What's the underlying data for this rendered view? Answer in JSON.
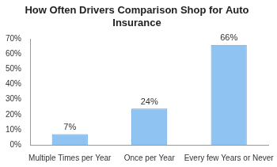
{
  "chart_data": {
    "type": "bar",
    "title": "How Often Drivers Comparison Shop for Auto Insurance",
    "categories": [
      "Multiple Times per Year",
      "Once per Year",
      "Every few Years or Never"
    ],
    "values": [
      7,
      24,
      66
    ],
    "value_labels": [
      "7%",
      "24%",
      "66%"
    ],
    "data_labels": true,
    "color": "#8ec3f2",
    "ylim": [
      0,
      70
    ],
    "yticks": [
      {
        "value": 0,
        "label": "0%"
      },
      {
        "value": 10,
        "label": "10%"
      },
      {
        "value": 20,
        "label": "20%"
      },
      {
        "value": 30,
        "label": "30%"
      },
      {
        "value": 40,
        "label": "40%"
      },
      {
        "value": 50,
        "label": "50%"
      },
      {
        "value": 60,
        "label": "60%"
      },
      {
        "value": 70,
        "label": "70%"
      }
    ],
    "grid": false
  }
}
